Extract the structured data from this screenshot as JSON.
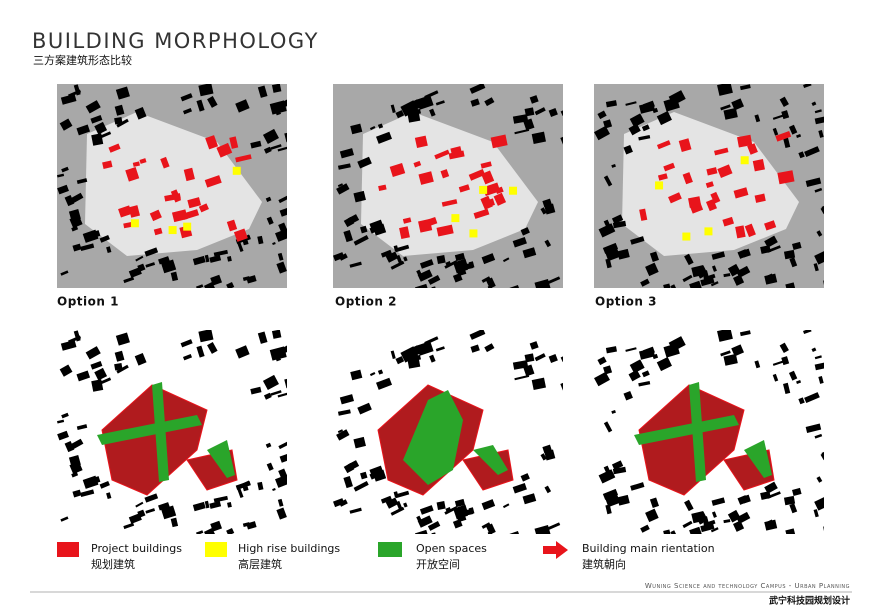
{
  "header": {
    "title": "BUILDING MORPHOLOGY",
    "subtitle": "三方案建筑形态比较"
  },
  "options": [
    {
      "label": "Option 1"
    },
    {
      "label": "Option 2"
    },
    {
      "label": "Option 3"
    }
  ],
  "legend": [
    {
      "label": "Project buildings",
      "label_cn": "规划建筑"
    },
    {
      "label": "High rise buildings",
      "label_cn": "高层建筑"
    },
    {
      "label": "Open spaces",
      "label_cn": "开放空间"
    },
    {
      "label": "Building main rientation",
      "label_cn": "建筑朝向"
    }
  ],
  "footer": {
    "campus": "Wuning Science and technology Campus - Urban Planning",
    "title_cn": "武宁科技园规划设计"
  }
}
